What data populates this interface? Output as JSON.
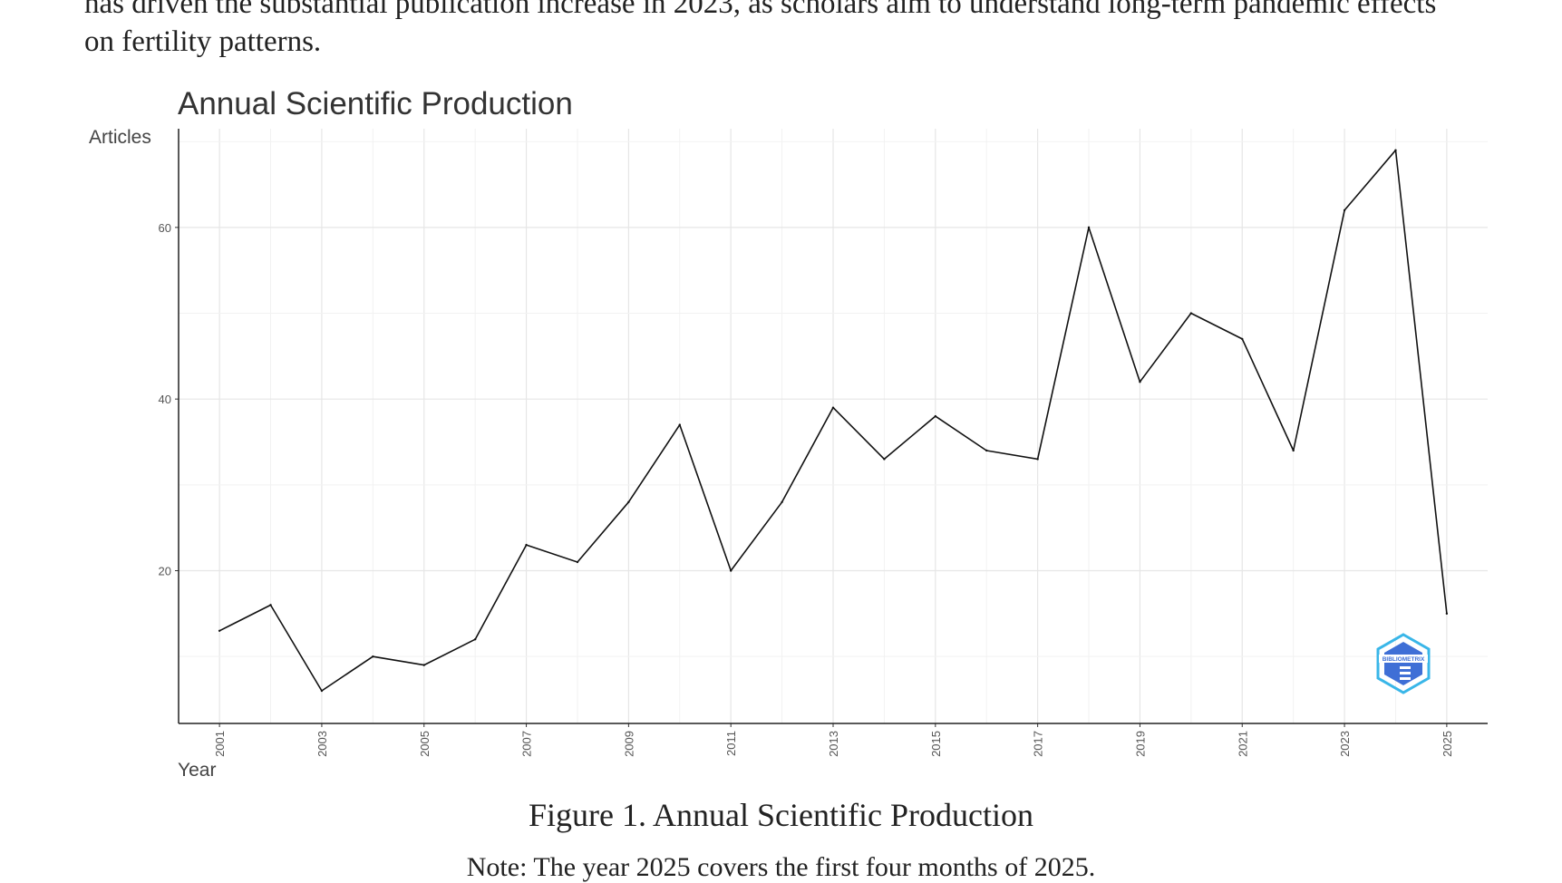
{
  "body_text": {
    "line1": "has driven the substantial publication increase in 2023, as scholars aim to understand long-term pandemic effects",
    "line2": "on fertility patterns."
  },
  "caption": "Figure 1. Annual Scientific Production",
  "note": "Note: The year 2025 covers the first four months of 2025.",
  "logo_label": "BIBLIOMETRIX",
  "chart_data": {
    "type": "line",
    "title": "Annual Scientific Production",
    "xlabel": "Year",
    "ylabel": "Articles",
    "x": [
      2001,
      2002,
      2003,
      2004,
      2005,
      2006,
      2007,
      2008,
      2009,
      2010,
      2011,
      2012,
      2013,
      2014,
      2015,
      2016,
      2017,
      2018,
      2019,
      2020,
      2021,
      2022,
      2023,
      2024,
      2025
    ],
    "y": [
      13,
      16,
      6,
      10,
      9,
      12,
      23,
      21,
      28,
      37,
      20,
      28,
      39,
      33,
      38,
      34,
      33,
      60,
      42,
      50,
      47,
      34,
      62,
      69,
      15
    ],
    "x_ticks": [
      "2001",
      "2003",
      "2005",
      "2007",
      "2009",
      "2011",
      "2013",
      "2015",
      "2017",
      "2019",
      "2021",
      "2023",
      "2025"
    ],
    "y_ticks": [
      "20",
      "40",
      "60"
    ],
    "xlim": [
      2000.2,
      2025.8
    ],
    "ylim": [
      2.2,
      71.5
    ],
    "grid": true,
    "line_color": "#111111",
    "logo_colors": [
      "#3f6fd6",
      "#39b6e8"
    ]
  }
}
